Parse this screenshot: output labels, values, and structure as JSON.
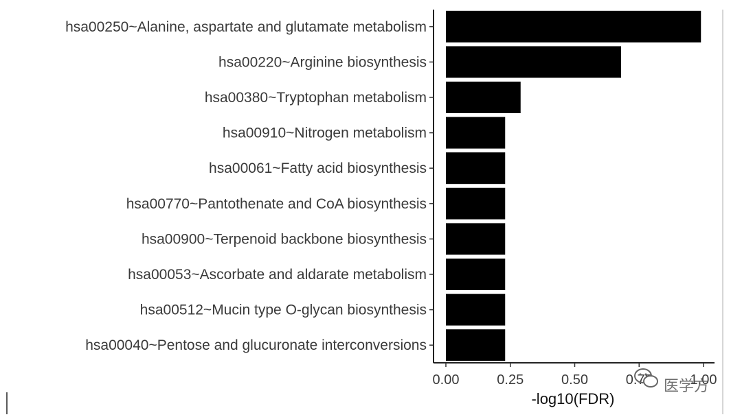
{
  "chart_data": {
    "type": "bar",
    "orientation": "horizontal",
    "categories": [
      "hsa00250~Alanine, aspartate and glutamate metabolism",
      "hsa00220~Arginine biosynthesis",
      "hsa00380~Tryptophan metabolism",
      "hsa00910~Nitrogen metabolism",
      "hsa00061~Fatty acid biosynthesis",
      "hsa00770~Pantothenate and CoA biosynthesis",
      "hsa00900~Terpenoid backbone biosynthesis",
      "hsa00053~Ascorbate and aldarate metabolism",
      "hsa00512~Mucin type O-glycan biosynthesis",
      "hsa00040~Pentose and glucuronate interconversions"
    ],
    "values": [
      0.99,
      0.68,
      0.29,
      0.23,
      0.23,
      0.23,
      0.23,
      0.23,
      0.23,
      0.23
    ],
    "title": "",
    "xlabel": "-log10(FDR)",
    "ylabel": "",
    "xlim": [
      0,
      1.0
    ],
    "xticks": [
      0,
      0.25,
      0.5,
      0.75,
      1.0
    ],
    "xtick_labels": [
      "0.00",
      "0.25",
      "0.50",
      "0.75",
      "1.00"
    ],
    "grid": false,
    "bar_color": "#000000",
    "legend": "none"
  },
  "watermark": {
    "text": "医学方",
    "icon": "wechat-logo-icon"
  }
}
